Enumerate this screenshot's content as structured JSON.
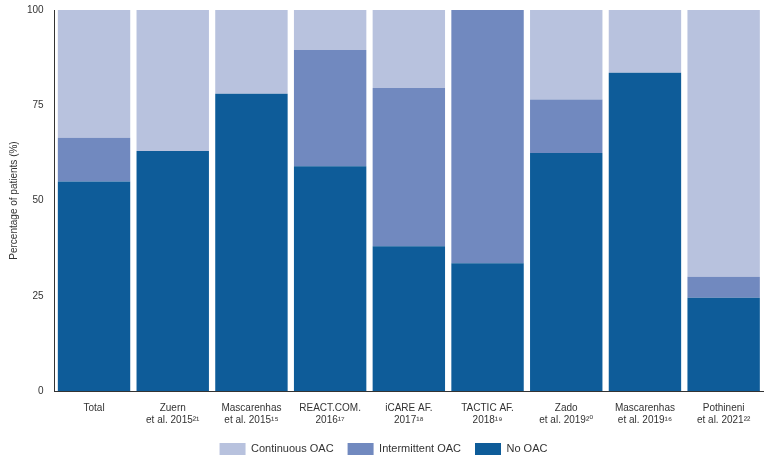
{
  "chart_data": {
    "type": "bar",
    "y_label": "Percentage of patients (%)",
    "categories": [
      "Total",
      "Zuern\net al. 2015²¹",
      "Mascarenhas\net al. 2015¹⁵",
      "REACT.COM.\n2016¹⁷",
      "iCARE AF.\n2017¹⁸",
      "TACTIC AF.\n2018¹⁹",
      "Zado\net al. 2019²⁰",
      "Mascarenhas\net al. 2019¹⁶",
      "Pothineni\net al. 2021²²"
    ],
    "series": [
      {
        "name": "No OAC",
        "color": "#0e5c99",
        "values": [
          55,
          63,
          78,
          59,
          38,
          33.5,
          62.5,
          83.5,
          24.5
        ]
      },
      {
        "name": "Intermittent OAC",
        "color": "#7189bf",
        "values": [
          11.5,
          0,
          0,
          30.5,
          41.5,
          66.5,
          14,
          0,
          5.5
        ]
      },
      {
        "name": "Continuous OAC",
        "color": "#b8c2de",
        "values": [
          33.5,
          37,
          22,
          10.5,
          20.5,
          0,
          23.5,
          16.5,
          70
        ]
      }
    ],
    "stacked": true,
    "ylim": [
      0,
      100
    ],
    "yticks": [
      0,
      25,
      50,
      75,
      100
    ],
    "grid": false,
    "legend": "bottom"
  }
}
